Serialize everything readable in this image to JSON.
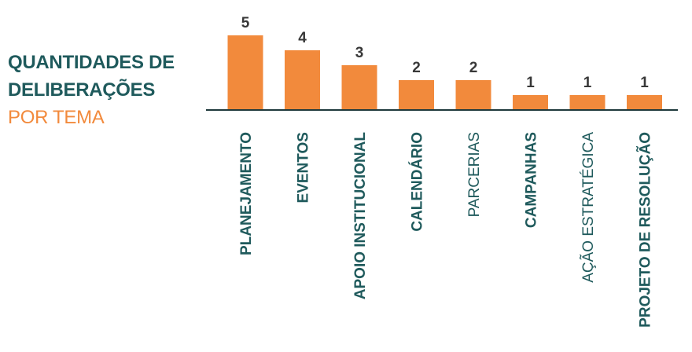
{
  "title": {
    "line1": "QUANTIDADES DE",
    "line2": "DELIBERAÇÕES",
    "line3": "POR TEMA"
  },
  "colors": {
    "bar": "#f28a3c",
    "title_dark": "#1f5a5c",
    "title_accent": "#f28a3c",
    "value_text": "#383838",
    "category_text": "#1f5a5c",
    "baseline": "#1f3a3c"
  },
  "chart_data": {
    "type": "bar",
    "title": "QUANTIDADES DE DELIBERAÇÕES POR TEMA",
    "xlabel": "",
    "ylabel": "",
    "categories": [
      "PLANEJAMENTO",
      "EVENTOS",
      "APOIO INSTITUCIONAL",
      "CALENDÁRIO",
      "PARCERIAS",
      "CAMPANHAS",
      "AÇÃO ESTRATÉGICA",
      "PROJETO DE RESOLUÇÃO"
    ],
    "values": [
      5,
      4,
      3,
      2,
      2,
      1,
      1,
      1
    ],
    "category_bold": [
      true,
      true,
      true,
      true,
      false,
      true,
      false,
      true
    ],
    "ylim": [
      0,
      5
    ],
    "grid": false,
    "legend": "none"
  }
}
